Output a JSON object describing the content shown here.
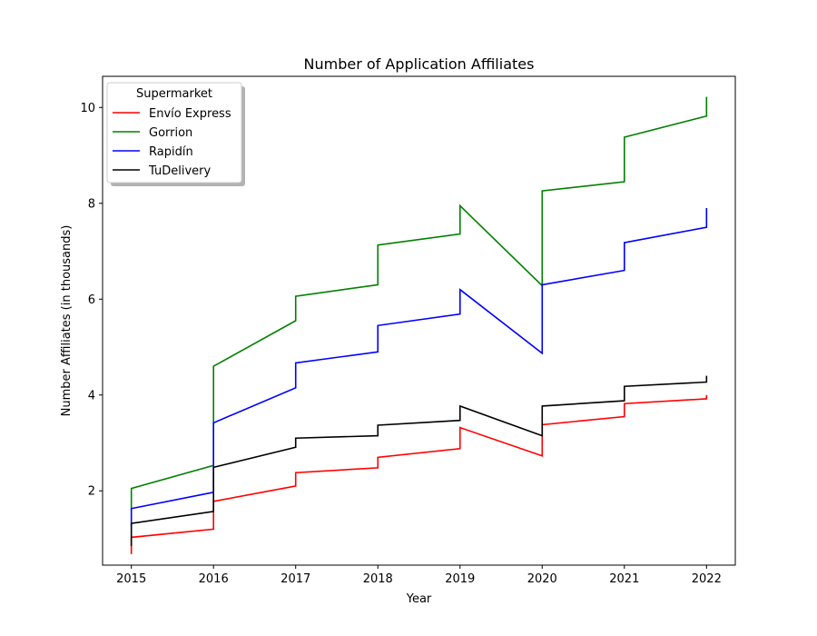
{
  "chart_data": {
    "type": "line",
    "title": "Number of Application Affiliates",
    "xlabel": "Year",
    "ylabel": "Number Affiliates (in thousands)",
    "xlim": [
      2014.65,
      2022.35
    ],
    "ylim": [
      0.45,
      10.65
    ],
    "xticks": [
      2015,
      2016,
      2017,
      2018,
      2019,
      2020,
      2021,
      2022
    ],
    "yticks": [
      2,
      4,
      6,
      8,
      10
    ],
    "grid": false,
    "legend": {
      "title": "Supermarket",
      "placement": "upper-left"
    },
    "series": [
      {
        "name": "Envío Express",
        "color": "#ff0000",
        "points": [
          [
            2015,
            0.68
          ],
          [
            2015,
            1.03
          ],
          [
            2016,
            1.2
          ],
          [
            2016,
            1.78
          ],
          [
            2017,
            2.1
          ],
          [
            2017,
            2.38
          ],
          [
            2018,
            2.48
          ],
          [
            2018,
            2.7
          ],
          [
            2019,
            2.88
          ],
          [
            2019,
            3.32
          ],
          [
            2020,
            2.73
          ],
          [
            2020,
            3.38
          ],
          [
            2021,
            3.55
          ],
          [
            2021,
            3.82
          ],
          [
            2022,
            3.92
          ],
          [
            2022,
            4.0
          ]
        ]
      },
      {
        "name": "Gorrion",
        "color": "#008000",
        "points": [
          [
            2015,
            1.6
          ],
          [
            2015,
            2.05
          ],
          [
            2016,
            2.53
          ],
          [
            2016,
            4.6
          ],
          [
            2017,
            5.55
          ],
          [
            2017,
            6.06
          ],
          [
            2018,
            6.3
          ],
          [
            2018,
            7.13
          ],
          [
            2019,
            7.36
          ],
          [
            2019,
            7.95
          ],
          [
            2020,
            6.28
          ],
          [
            2020,
            8.26
          ],
          [
            2021,
            8.45
          ],
          [
            2021,
            9.38
          ],
          [
            2022,
            9.82
          ],
          [
            2022,
            10.22
          ]
        ]
      },
      {
        "name": "Rapidín",
        "color": "#0000ff",
        "points": [
          [
            2015,
            1.25
          ],
          [
            2015,
            1.63
          ],
          [
            2016,
            1.97
          ],
          [
            2016,
            3.42
          ],
          [
            2017,
            4.15
          ],
          [
            2017,
            4.67
          ],
          [
            2018,
            4.9
          ],
          [
            2018,
            5.45
          ],
          [
            2019,
            5.69
          ],
          [
            2019,
            6.2
          ],
          [
            2020,
            4.87
          ],
          [
            2020,
            6.3
          ],
          [
            2021,
            6.6
          ],
          [
            2021,
            7.18
          ],
          [
            2022,
            7.5
          ],
          [
            2022,
            7.9
          ]
        ]
      },
      {
        "name": "TuDelivery",
        "color": "#000000",
        "points": [
          [
            2015,
            0.85
          ],
          [
            2015,
            1.32
          ],
          [
            2016,
            1.57
          ],
          [
            2016,
            2.49
          ],
          [
            2017,
            2.91
          ],
          [
            2017,
            3.1
          ],
          [
            2018,
            3.15
          ],
          [
            2018,
            3.37
          ],
          [
            2019,
            3.47
          ],
          [
            2019,
            3.77
          ],
          [
            2020,
            3.15
          ],
          [
            2020,
            3.77
          ],
          [
            2021,
            3.88
          ],
          [
            2021,
            4.18
          ],
          [
            2022,
            4.27
          ],
          [
            2022,
            4.4
          ]
        ]
      }
    ]
  }
}
